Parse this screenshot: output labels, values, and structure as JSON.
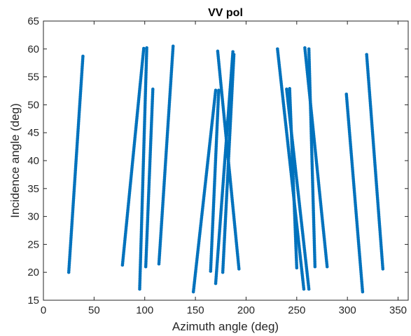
{
  "chart_data": {
    "type": "scatter",
    "title": "VV pol",
    "xlabel": "Azimuth angle (deg)",
    "ylabel": "Incidence angle (deg)",
    "xlim": [
      0,
      360
    ],
    "ylim": [
      15,
      65
    ],
    "xticks": [
      "0",
      "50",
      "100",
      "150",
      "200",
      "250",
      "300",
      "350"
    ],
    "yticks": [
      "15",
      "20",
      "25",
      "30",
      "35",
      "40",
      "45",
      "50",
      "55",
      "60",
      "65"
    ],
    "grid": false,
    "legend": "none",
    "marker_color": "#0072BD",
    "tracks": [
      {
        "x": [
          25,
          39
        ],
        "y": [
          20.0,
          58.7
        ]
      },
      {
        "x": [
          78,
          99
        ],
        "y": [
          21.3,
          60.1
        ]
      },
      {
        "x": [
          95,
          102
        ],
        "y": [
          17.0,
          60.2
        ]
      },
      {
        "x": [
          101,
          108
        ],
        "y": [
          21.0,
          52.8
        ]
      },
      {
        "x": [
          114,
          128
        ],
        "y": [
          21.5,
          60.5
        ]
      },
      {
        "x": [
          148,
          170
        ],
        "y": [
          16.5,
          52.6
        ]
      },
      {
        "x": [
          165,
          173
        ],
        "y": [
          20.2,
          52.6
        ]
      },
      {
        "x": [
          170,
          187
        ],
        "y": [
          18.0,
          59.5
        ]
      },
      {
        "x": [
          177,
          188
        ],
        "y": [
          20.0,
          59.0
        ]
      },
      {
        "x": [
          172,
          193
        ],
        "y": [
          59.6,
          20.6
        ]
      },
      {
        "x": [
          231,
          257
        ],
        "y": [
          60.0,
          17.0
        ]
      },
      {
        "x": [
          240,
          262
        ],
        "y": [
          52.8,
          17.0
        ]
      },
      {
        "x": [
          243,
          250
        ],
        "y": [
          52.9,
          20.8
        ]
      },
      {
        "x": [
          258,
          280
        ],
        "y": [
          60.2,
          21.0
        ]
      },
      {
        "x": [
          262,
          268
        ],
        "y": [
          60.0,
          21.0
        ]
      },
      {
        "x": [
          299,
          315
        ],
        "y": [
          51.9,
          16.5
        ]
      },
      {
        "x": [
          319,
          335
        ],
        "y": [
          59.0,
          20.6
        ]
      }
    ]
  }
}
